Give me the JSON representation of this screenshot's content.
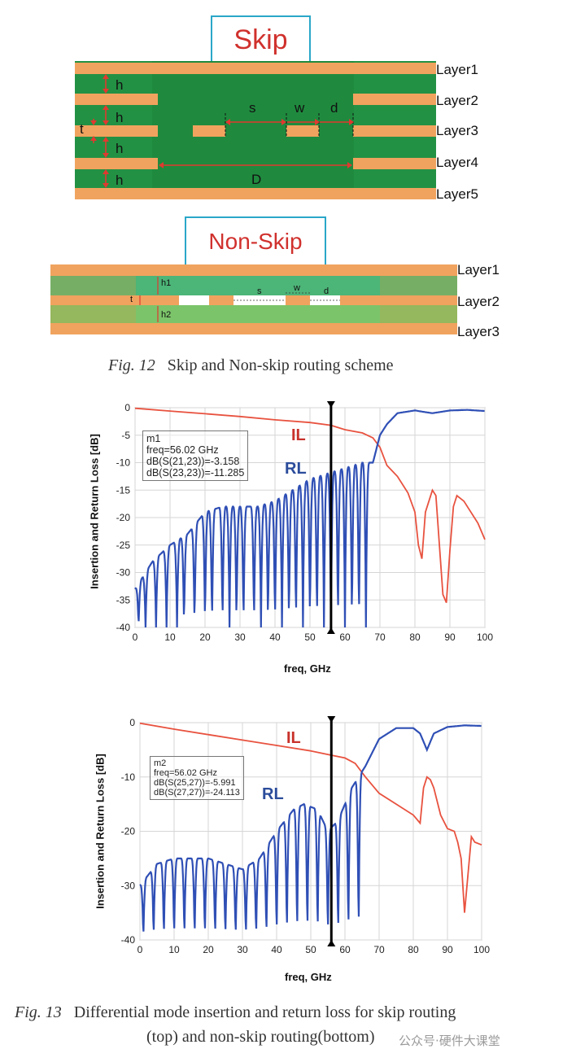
{
  "fig12": {
    "skip": {
      "title": "Skip",
      "layers": [
        "Layer1",
        "Layer2",
        "Layer3",
        "Layer4",
        "Layer5"
      ],
      "dims": {
        "h": "h",
        "t": "t",
        "s": "s",
        "w": "w",
        "d": "d",
        "D": "D"
      }
    },
    "nonskip": {
      "title": "Non-Skip",
      "layers": [
        "Layer1",
        "Layer2",
        "Layer3"
      ],
      "dims": {
        "h1": "h1",
        "h2": "h2",
        "t": "t",
        "s": "s",
        "w": "w",
        "d": "d"
      }
    },
    "caption_label": "Fig.  12",
    "caption_text": "Skip and Non-skip routing scheme"
  },
  "fig13": {
    "caption_label": "Fig.  13",
    "caption_line1": "Differential mode insertion and return loss for skip routing",
    "caption_line2": "(top) and non-skip routing(bottom)",
    "watermark": "公众号·硬件大课堂"
  },
  "colors": {
    "copper": "#f0a35e",
    "dielectric": "#1f8a3e",
    "il": "#e8523f",
    "rl": "#2f4fb5",
    "title_box": "#2aa7c9",
    "title_text": "#d0312d"
  },
  "chart_data": [
    {
      "type": "line",
      "title": "",
      "xlabel": "freq, GHz",
      "ylabel": "Insertion and Return Loss [dB]",
      "xlim": [
        0,
        100
      ],
      "ylim": [
        -40,
        0
      ],
      "xticks": [
        "0",
        "10",
        "20",
        "30",
        "40",
        "50",
        "60",
        "70",
        "80",
        "90",
        "100"
      ],
      "yticks": [
        "0",
        "-5",
        "-10",
        "-15",
        "-20",
        "-25",
        "-30",
        "-35",
        "-40"
      ],
      "grid": true,
      "marker": {
        "name": "m1",
        "freq": 56.02,
        "lines": [
          "m1",
          "freq=56.02 GHz",
          "dB(S(21,23))=-3.158",
          "dB(S(23,23))=-11.285"
        ]
      },
      "annotations": [
        "IL",
        "RL"
      ],
      "series": [
        {
          "label": "IL",
          "color": "#e8523f",
          "x": [
            0,
            10,
            20,
            30,
            40,
            50,
            56,
            60,
            65,
            68,
            70,
            72,
            75,
            78,
            80,
            81,
            82,
            83,
            84,
            85,
            86,
            87,
            88,
            89,
            90,
            91,
            92,
            94,
            96,
            98,
            100
          ],
          "y": [
            -0.1,
            -0.6,
            -1.1,
            -1.6,
            -2.2,
            -2.7,
            -3.2,
            -4.0,
            -4.6,
            -5.5,
            -7.2,
            -10.5,
            -12.5,
            -15.5,
            -19.0,
            -25.0,
            -27.5,
            -19.0,
            -17.0,
            -15.0,
            -16.0,
            -25.0,
            -34.0,
            -35.5,
            -26.0,
            -18.0,
            -16.0,
            -17.0,
            -19.0,
            -21.0,
            -24.0
          ]
        },
        {
          "label": "RL",
          "color": "#2f4fb5",
          "envelope_x": [
            0,
            5,
            10,
            15,
            20,
            25,
            30,
            35,
            40,
            45,
            50,
            55,
            60,
            65,
            68,
            70,
            72,
            75,
            80,
            85,
            90,
            95,
            100
          ],
          "envelope_y": [
            -33,
            -28,
            -25,
            -23,
            -19,
            -18,
            -18,
            -18,
            -17,
            -15,
            -13,
            -12,
            -11,
            -10,
            -10,
            -5,
            -3,
            -1,
            -0.5,
            -1.0,
            -0.5,
            -0.4,
            -0.6
          ],
          "nulls": [
            1,
            3,
            6,
            9,
            12,
            14,
            17,
            20,
            22,
            25,
            27,
            29,
            31,
            34,
            36,
            38,
            40,
            42,
            44,
            46,
            48,
            50,
            52,
            54,
            56,
            58,
            60,
            62,
            64,
            66
          ]
        }
      ]
    },
    {
      "type": "line",
      "title": "",
      "xlabel": "freq, GHz",
      "ylabel": "Insertion and Return Loss [dB]",
      "xlim": [
        0,
        100
      ],
      "ylim": [
        -40,
        0
      ],
      "xticks": [
        "0",
        "10",
        "20",
        "30",
        "40",
        "50",
        "60",
        "70",
        "80",
        "90",
        "100"
      ],
      "yticks": [
        "0",
        "-10",
        "-20",
        "-30",
        "-40"
      ],
      "grid": true,
      "marker": {
        "name": "m2",
        "freq": 56.02,
        "lines": [
          "m2",
          "freq=56.02 GHz",
          "dB(S(25,27))=-5.991",
          "dB(S(27,27))=-24.113"
        ]
      },
      "annotations": [
        "IL",
        "RL"
      ],
      "series": [
        {
          "label": "IL",
          "color": "#e8523f",
          "x": [
            0,
            10,
            20,
            30,
            40,
            50,
            56,
            60,
            63,
            66,
            70,
            75,
            80,
            82,
            83,
            84,
            85,
            86,
            88,
            90,
            92,
            93,
            94,
            95,
            96,
            97,
            98,
            100
          ],
          "y": [
            -0.1,
            -1.2,
            -2.2,
            -3.2,
            -4.2,
            -5.2,
            -6.0,
            -6.5,
            -7.5,
            -10.0,
            -13.0,
            -15.0,
            -17.0,
            -18.5,
            -12.0,
            -10.0,
            -10.5,
            -12.0,
            -17.0,
            -19.5,
            -20.0,
            -22.0,
            -25.0,
            -35.0,
            -28.0,
            -21.0,
            -22.0,
            -22.5
          ]
        },
        {
          "label": "RL",
          "color": "#2f4fb5",
          "envelope_x": [
            0,
            5,
            10,
            15,
            20,
            25,
            30,
            35,
            40,
            45,
            48,
            52,
            55,
            58,
            62,
            66,
            70,
            75,
            80,
            82,
            84,
            86,
            90,
            95,
            100
          ],
          "envelope_y": [
            -30,
            -26,
            -25,
            -25,
            -25,
            -26,
            -27,
            -25,
            -20,
            -16,
            -15,
            -16,
            -20,
            -18,
            -12,
            -8,
            -3,
            -1,
            -1,
            -2,
            -5,
            -2,
            -0.8,
            -0.5,
            -0.6
          ],
          "nulls": [
            1,
            4,
            7,
            10,
            13,
            16,
            19,
            22,
            25,
            28,
            31,
            34,
            37,
            40,
            43,
            46,
            49,
            52,
            55,
            58,
            61,
            64
          ]
        }
      ]
    }
  ]
}
